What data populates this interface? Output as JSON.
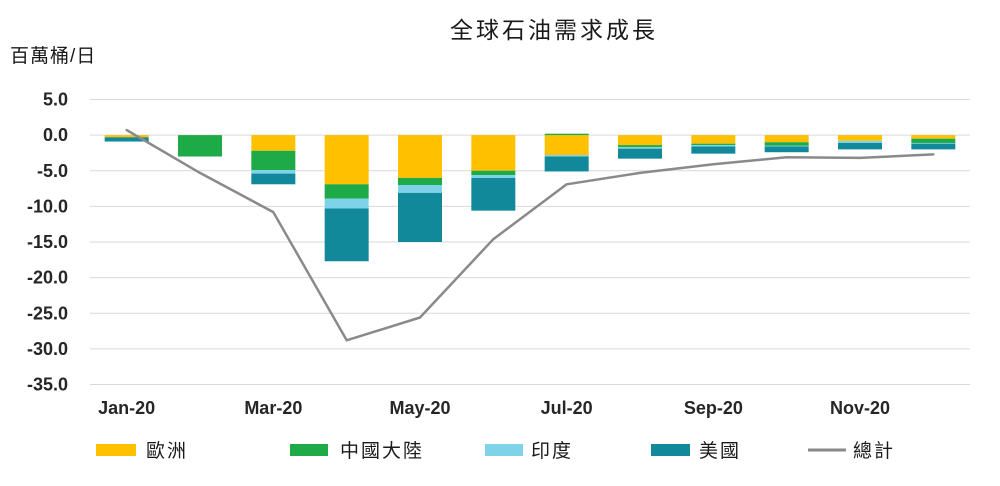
{
  "chart_data": {
    "type": "bar",
    "stacked": true,
    "title": "全球石油需求成長",
    "ylabel": "百萬桶/日",
    "categories": [
      "Jan-20",
      "",
      "Mar-20",
      "",
      "May-20",
      "",
      "Jul-20",
      "",
      "Sep-20",
      "",
      "Nov-20",
      ""
    ],
    "ylim": [
      -35,
      5
    ],
    "yticks": [
      5,
      0,
      -5,
      -10,
      -15,
      -20,
      -25,
      -30,
      -35
    ],
    "ytick_labels": [
      "5.0",
      "0.0",
      "-5.0",
      "-10.0",
      "-15.0",
      "-20.0",
      "-25.0",
      "-30.0",
      "-35.0"
    ],
    "grid": true,
    "legend_position": "bottom",
    "series": [
      {
        "name": "歐洲",
        "type": "bar",
        "color": "#FFC000",
        "values": [
          -0.3,
          0,
          -2.2,
          -6.9,
          -6.0,
          -5.0,
          -2.8,
          -1.4,
          -1.2,
          -1.0,
          -0.8,
          -0.5
        ]
      },
      {
        "name": "中國大陸",
        "type": "bar",
        "color": "#1DAA47",
        "values": [
          0,
          -3.0,
          -2.7,
          -2.0,
          -1.0,
          -0.6,
          0.2,
          -0.3,
          -0.2,
          -0.5,
          0,
          -0.6
        ]
      },
      {
        "name": "印度",
        "type": "bar",
        "color": "#7ED3E8",
        "values": [
          0,
          0,
          -0.5,
          -1.4,
          -1.1,
          -0.4,
          -0.2,
          -0.2,
          -0.2,
          -0.1,
          -0.3,
          -0.1
        ]
      },
      {
        "name": "美國",
        "type": "bar",
        "color": "#11899B",
        "values": [
          -0.6,
          0,
          -1.5,
          -7.4,
          -6.9,
          -4.6,
          -2.1,
          -1.4,
          -1.0,
          -0.8,
          -0.9,
          -0.8
        ]
      },
      {
        "name": "總計",
        "type": "line",
        "color": "#8A8A8A",
        "values": [
          0.7,
          -5.3,
          -10.8,
          -28.8,
          -25.6,
          -14.6,
          -6.9,
          -5.3,
          -4.1,
          -3.1,
          -3.2,
          -2.7
        ]
      }
    ]
  }
}
